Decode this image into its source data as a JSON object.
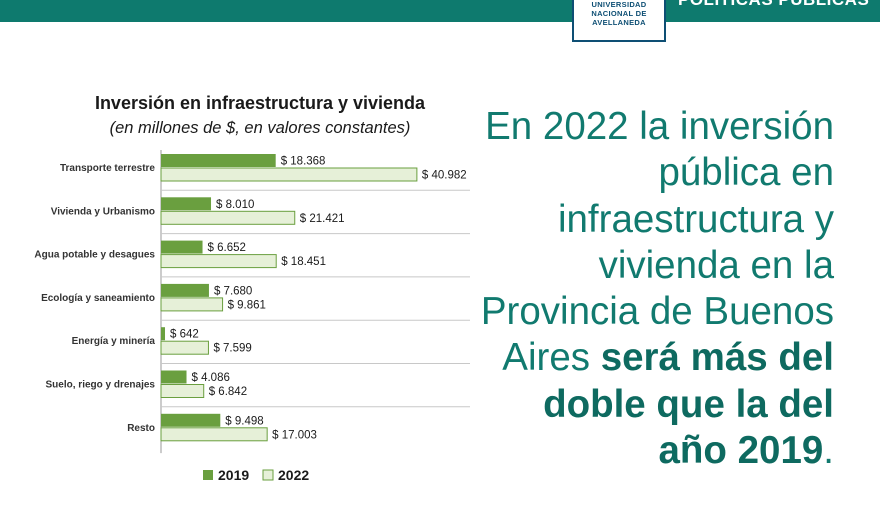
{
  "header": {
    "logo_lines": [
      "UNIVERSIDAD",
      "NACIONAL DE",
      "AVELLANEDA"
    ],
    "section": "POLÍTICAS PÚBLICAS"
  },
  "headline": {
    "normal": "En 2022 la inversión pública en infraestructura y vivienda en la Provincia de Buenos Aires ",
    "bold": "será más del doble que la del año 2019",
    "end": "."
  },
  "colors": {
    "teal": "#117a6f",
    "bar_2019": "#6a9f3f",
    "bar_2022": "#e6f0d8",
    "bar_2022_border": "#6a9f3f"
  },
  "chart_data": {
    "type": "bar",
    "orientation": "horizontal",
    "title": "Inversión en infraestructura y vivienda",
    "subtitle": "(en millones de $, en valores constantes)",
    "categories": [
      "Transporte terrestre",
      "Vivienda y Urbanismo",
      "Agua potable y desagues",
      "Ecología y saneamiento",
      "Energía y minería",
      "Suelo, riego y drenajes",
      "Resto"
    ],
    "series": [
      {
        "name": "2019",
        "values": [
          18368,
          8010,
          6652,
          7680,
          642,
          4086,
          9498
        ],
        "labels": [
          "$ 18.368",
          "$ 8.010",
          "$ 6.652",
          "$ 7.680",
          "$ 642",
          "$ 4.086",
          "$ 9.498"
        ]
      },
      {
        "name": "2022",
        "values": [
          40982,
          21421,
          18451,
          9861,
          7599,
          6842,
          17003
        ],
        "labels": [
          "$ 40.982",
          "$ 21.421",
          "$ 18.451",
          "$ 9.861",
          "$ 7.599",
          "$ 6.842",
          "$ 17.003"
        ]
      }
    ],
    "legend": [
      "2019",
      "2022"
    ],
    "legend_position": "bottom"
  }
}
